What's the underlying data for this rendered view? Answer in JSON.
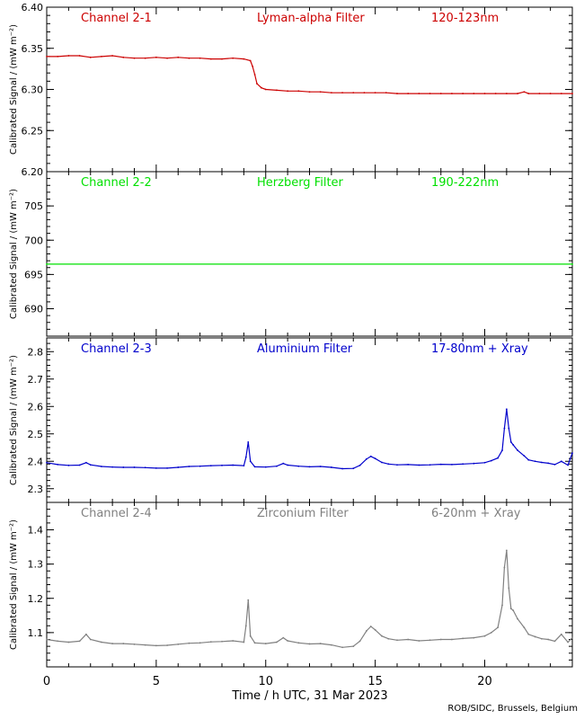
{
  "chart_data": [
    {
      "type": "scatter",
      "channel": "Channel 2-1",
      "filter": "Lyman-alpha Filter",
      "band": "120-123nm",
      "ylabel": "Calibrated Signal / (mW m⁻²)",
      "color": "#cc0000",
      "ylim": [
        6.2,
        6.4
      ],
      "yticks": [
        6.2,
        6.25,
        6.3,
        6.35,
        6.4
      ],
      "ytick_labels": [
        "6.20",
        "6.25",
        "6.30",
        "6.35",
        "6.40"
      ],
      "series": [
        {
          "x": [
            0,
            0.5,
            1,
            1.5,
            2,
            2.5,
            3,
            3.5,
            4,
            4.5,
            5,
            5.5,
            6,
            6.5,
            7,
            7.5,
            8,
            8.5,
            9,
            9.3,
            9.4,
            9.5,
            9.6,
            9.8,
            10,
            10.5,
            11,
            11.5,
            12,
            12.5,
            13,
            13.5,
            14,
            14.5,
            15,
            15.5,
            16,
            16.5,
            17,
            17.5,
            18,
            18.5,
            19,
            19.5,
            20,
            20.5,
            21,
            21.5,
            21.8,
            22,
            22.5,
            23,
            23.5,
            24
          ],
          "y": [
            6.34,
            6.34,
            6.341,
            6.341,
            6.339,
            6.34,
            6.341,
            6.339,
            6.338,
            6.338,
            6.339,
            6.338,
            6.339,
            6.338,
            6.338,
            6.337,
            6.337,
            6.338,
            6.337,
            6.335,
            6.328,
            6.318,
            6.307,
            6.302,
            6.3,
            6.299,
            6.298,
            6.298,
            6.297,
            6.297,
            6.296,
            6.296,
            6.296,
            6.296,
            6.296,
            6.296,
            6.295,
            6.295,
            6.295,
            6.295,
            6.295,
            6.295,
            6.295,
            6.295,
            6.295,
            6.295,
            6.295,
            6.295,
            6.297,
            6.295,
            6.295,
            6.295,
            6.295,
            6.295
          ]
        }
      ]
    },
    {
      "type": "scatter",
      "channel": "Channel 2-2",
      "filter": "Herzberg Filter",
      "band": "190-222nm",
      "ylabel": "Calibrated Signal / (mW m⁻²)",
      "color": "#00e000",
      "ylim": [
        686,
        710
      ],
      "yticks": [
        690,
        695,
        700,
        705
      ],
      "ytick_labels": [
        "690",
        "695",
        "700",
        "705"
      ],
      "series": [
        {
          "x": [
            0,
            24
          ],
          "y": [
            696.5,
            696.5
          ]
        }
      ]
    },
    {
      "type": "scatter",
      "channel": "Channel 2-3",
      "filter": "Aluminium Filter",
      "band": "17-80nm + Xray",
      "ylabel": "Calibrated Signal / (mW m⁻²)",
      "color": "#0000cc",
      "ylim": [
        2.25,
        2.85
      ],
      "yticks": [
        2.3,
        2.4,
        2.5,
        2.6,
        2.7,
        2.8
      ],
      "ytick_labels": [
        "2.3",
        "2.4",
        "2.5",
        "2.6",
        "2.7",
        "2.8"
      ],
      "series": [
        {
          "x": [
            0,
            0.5,
            1,
            1.5,
            1.8,
            2,
            2.5,
            3,
            3.5,
            4,
            4.5,
            5,
            5.5,
            6,
            6.5,
            7,
            7.5,
            8,
            8.5,
            9,
            9.1,
            9.2,
            9.3,
            9.5,
            10,
            10.5,
            10.8,
            11,
            11.5,
            12,
            12.5,
            13,
            13.5,
            14,
            14.3,
            14.6,
            14.8,
            15,
            15.3,
            15.6,
            16,
            16.5,
            17,
            17.5,
            18,
            18.5,
            19,
            19.5,
            20,
            20.3,
            20.6,
            20.8,
            20.9,
            21,
            21.1,
            21.2,
            21.3,
            21.5,
            21.8,
            22,
            22.3,
            22.6,
            22.9,
            23.2,
            23.5,
            23.8,
            24
          ],
          "y": [
            2.395,
            2.388,
            2.385,
            2.386,
            2.395,
            2.387,
            2.381,
            2.379,
            2.378,
            2.378,
            2.377,
            2.375,
            2.375,
            2.378,
            2.381,
            2.382,
            2.384,
            2.385,
            2.386,
            2.384,
            2.415,
            2.47,
            2.4,
            2.38,
            2.379,
            2.382,
            2.392,
            2.386,
            2.382,
            2.38,
            2.381,
            2.378,
            2.373,
            2.374,
            2.385,
            2.408,
            2.418,
            2.41,
            2.396,
            2.39,
            2.387,
            2.388,
            2.386,
            2.387,
            2.389,
            2.388,
            2.39,
            2.392,
            2.395,
            2.402,
            2.412,
            2.44,
            2.52,
            2.59,
            2.52,
            2.47,
            2.46,
            2.44,
            2.42,
            2.405,
            2.4,
            2.396,
            2.393,
            2.388,
            2.4,
            2.386,
            2.43
          ]
        }
      ]
    },
    {
      "type": "scatter",
      "channel": "Channel 2-4",
      "filter": "Zirconium Filter",
      "band": "6-20nm + Xray",
      "ylabel": "Calibrated Signal / (mW m⁻²)",
      "color": "#808080",
      "ylim": [
        1.0,
        1.48
      ],
      "yticks": [
        1.1,
        1.2,
        1.3,
        1.4
      ],
      "ytick_labels": [
        "1.1",
        "1.2",
        "1.3",
        "1.4"
      ],
      "series": [
        {
          "x": [
            0,
            0.5,
            1,
            1.5,
            1.8,
            2,
            2.5,
            3,
            3.5,
            4,
            4.5,
            5,
            5.5,
            6,
            6.5,
            7,
            7.5,
            8,
            8.5,
            9,
            9.1,
            9.2,
            9.3,
            9.5,
            10,
            10.5,
            10.8,
            11,
            11.5,
            12,
            12.5,
            13,
            13.5,
            14,
            14.3,
            14.6,
            14.8,
            15,
            15.3,
            15.6,
            16,
            16.5,
            17,
            17.5,
            18,
            18.5,
            19,
            19.5,
            20,
            20.3,
            20.6,
            20.8,
            20.9,
            21,
            21.1,
            21.2,
            21.3,
            21.5,
            21.8,
            22,
            22.3,
            22.6,
            22.9,
            23.2,
            23.5,
            23.8,
            24
          ],
          "y": [
            1.08,
            1.075,
            1.072,
            1.075,
            1.095,
            1.08,
            1.072,
            1.068,
            1.068,
            1.066,
            1.064,
            1.062,
            1.063,
            1.066,
            1.069,
            1.07,
            1.073,
            1.074,
            1.076,
            1.072,
            1.12,
            1.195,
            1.09,
            1.07,
            1.068,
            1.072,
            1.085,
            1.076,
            1.07,
            1.067,
            1.068,
            1.064,
            1.057,
            1.06,
            1.075,
            1.105,
            1.118,
            1.108,
            1.09,
            1.082,
            1.078,
            1.08,
            1.076,
            1.078,
            1.08,
            1.08,
            1.083,
            1.085,
            1.09,
            1.1,
            1.115,
            1.18,
            1.29,
            1.34,
            1.23,
            1.17,
            1.165,
            1.14,
            1.115,
            1.095,
            1.088,
            1.082,
            1.08,
            1.075,
            1.095,
            1.072,
            1.085
          ]
        }
      ]
    }
  ],
  "x_axis": {
    "label": "Time / h UTC, 31 Mar 2023",
    "xlim": [
      0,
      24
    ],
    "ticks": [
      0,
      5,
      10,
      15,
      20
    ],
    "tick_labels": [
      "0",
      "5",
      "10",
      "15",
      "20"
    ]
  },
  "credit": "ROB/SIDC, Brussels, Belgium"
}
